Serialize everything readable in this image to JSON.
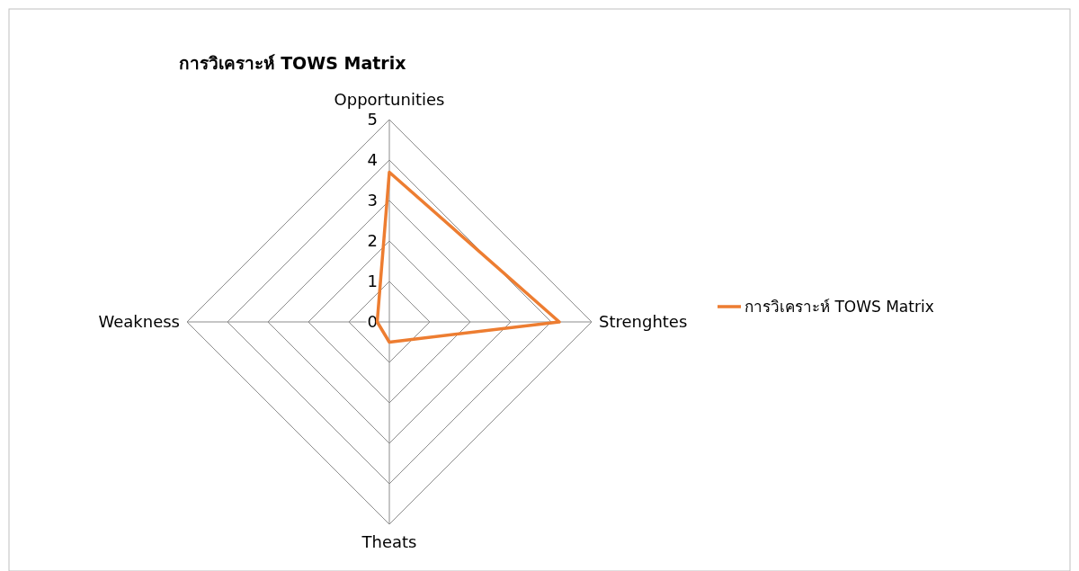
{
  "chart_data": {
    "type": "radar",
    "title": "การวิเคราะห์ TOWS Matrix",
    "categories": [
      "Opportunities",
      "Strenghtes",
      "Theats",
      "Weakness"
    ],
    "series": [
      {
        "name": "การวิเคราะห์ TOWS Matrix",
        "color": "#ed7d31",
        "values": [
          3.7,
          4.2,
          0.5,
          0.3
        ]
      }
    ],
    "ylim": [
      0,
      5
    ],
    "yticks": [
      0,
      1,
      2,
      3,
      4,
      5
    ],
    "grid": true,
    "legend": "right"
  }
}
